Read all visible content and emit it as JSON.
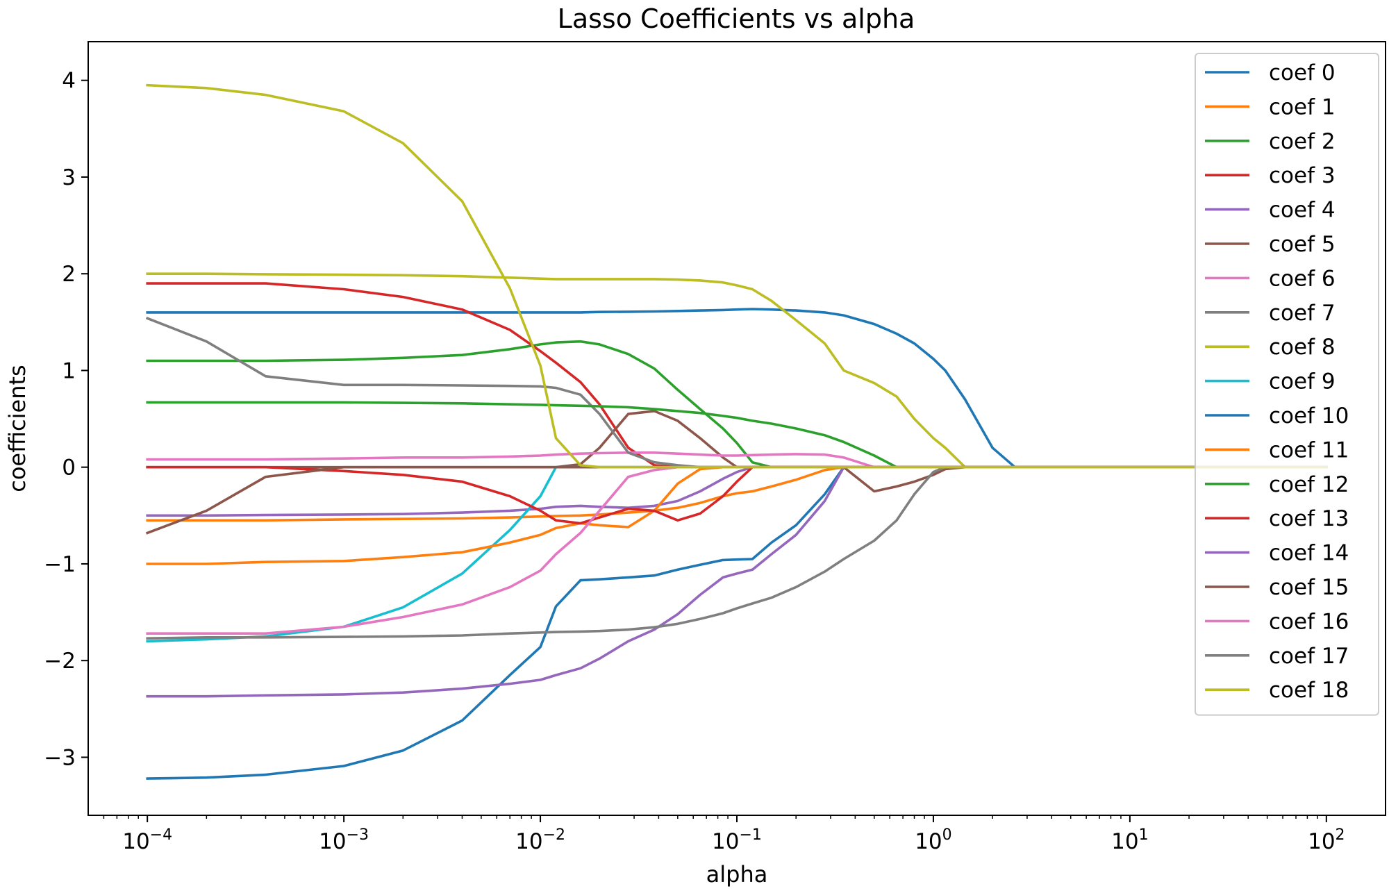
{
  "chart_data": {
    "type": "line",
    "title": "Lasso Coefficients vs alpha",
    "xlabel": "alpha",
    "ylabel": "coefficients",
    "xscale": "log",
    "xlim": [
      5e-05,
      200
    ],
    "ylim": [
      -3.6,
      4.4
    ],
    "xticks": [
      {
        "value": 0.0001,
        "base": "10",
        "exp": "−4"
      },
      {
        "value": 0.001,
        "base": "10",
        "exp": "−3"
      },
      {
        "value": 0.01,
        "base": "10",
        "exp": "−2"
      },
      {
        "value": 0.1,
        "base": "10",
        "exp": "−1"
      },
      {
        "value": 1,
        "base": "10",
        "exp": "0"
      },
      {
        "value": 10,
        "base": "10",
        "exp": "1"
      },
      {
        "value": 100,
        "base": "10",
        "exp": "2"
      }
    ],
    "yticks": [
      {
        "value": -3,
        "label": "−3"
      },
      {
        "value": -2,
        "label": "−2"
      },
      {
        "value": -1,
        "label": "−1"
      },
      {
        "value": 0,
        "label": "0"
      },
      {
        "value": 1,
        "label": "1"
      },
      {
        "value": 2,
        "label": "2"
      },
      {
        "value": 3,
        "label": "3"
      },
      {
        "value": 4,
        "label": "4"
      }
    ],
    "grid": false,
    "legend_position": "top-right",
    "x": [
      0.0001,
      0.0002,
      0.0004,
      0.001,
      0.002,
      0.004,
      0.007,
      0.01,
      0.012,
      0.016,
      0.02,
      0.028,
      0.038,
      0.05,
      0.065,
      0.085,
      0.1,
      0.12,
      0.15,
      0.2,
      0.28,
      0.35,
      0.5,
      0.65,
      0.8,
      1.0,
      1.15,
      1.45,
      2.0,
      2.6,
      10,
      100
    ],
    "series": [
      {
        "name": "coef 0",
        "color": "#1f77b4",
        "values": [
          1.6,
          1.6,
          1.6,
          1.6,
          1.6,
          1.6,
          1.6,
          1.6,
          1.6,
          1.6,
          1.605,
          1.607,
          1.61,
          1.615,
          1.62,
          1.625,
          1.63,
          1.635,
          1.63,
          1.62,
          1.6,
          1.57,
          1.48,
          1.38,
          1.28,
          1.12,
          1.0,
          0.7,
          0.2,
          0,
          0,
          0
        ]
      },
      {
        "name": "coef 1",
        "color": "#ff7f0e",
        "values": [
          -0.55,
          -0.55,
          -0.55,
          -0.54,
          -0.535,
          -0.53,
          -0.52,
          -0.51,
          -0.505,
          -0.5,
          -0.49,
          -0.47,
          -0.45,
          -0.42,
          -0.37,
          -0.3,
          -0.27,
          -0.25,
          -0.2,
          -0.13,
          -0.03,
          0,
          0,
          0,
          0,
          0,
          0,
          0,
          0,
          0,
          0,
          0
        ]
      },
      {
        "name": "coef 2",
        "color": "#2ca02c",
        "values": [
          1.1,
          1.1,
          1.1,
          1.11,
          1.13,
          1.16,
          1.22,
          1.27,
          1.29,
          1.3,
          1.27,
          1.17,
          1.02,
          0.8,
          0.6,
          0.4,
          0.25,
          0.05,
          0,
          0,
          0,
          0,
          0,
          0,
          0,
          0,
          0,
          0,
          0,
          0,
          0,
          0
        ]
      },
      {
        "name": "coef 3",
        "color": "#d62728",
        "values": [
          1.9,
          1.9,
          1.9,
          1.84,
          1.76,
          1.63,
          1.42,
          1.2,
          1.08,
          0.88,
          0.65,
          0.2,
          0.02,
          0,
          0,
          0,
          0,
          0,
          0,
          0,
          0,
          0,
          0,
          0,
          0,
          0,
          0,
          0,
          0,
          0,
          0,
          0
        ]
      },
      {
        "name": "coef 4",
        "color": "#9467bd",
        "values": [
          -0.5,
          -0.5,
          -0.495,
          -0.49,
          -0.485,
          -0.47,
          -0.45,
          -0.43,
          -0.41,
          -0.4,
          -0.41,
          -0.42,
          -0.4,
          -0.35,
          -0.25,
          -0.12,
          -0.05,
          0,
          0,
          0,
          0,
          0,
          0,
          0,
          0,
          0,
          0,
          0,
          0,
          0,
          0,
          0
        ]
      },
      {
        "name": "coef 5",
        "color": "#8c564b",
        "values": [
          0,
          0,
          0,
          0,
          0,
          0,
          0,
          0,
          0,
          0.03,
          0.2,
          0.55,
          0.58,
          0.48,
          0.3,
          0.1,
          0,
          0,
          0,
          0,
          0,
          0,
          0,
          0,
          0,
          0,
          0,
          0,
          0,
          0,
          0,
          0
        ]
      },
      {
        "name": "coef 6",
        "color": "#e377c2",
        "values": [
          0.08,
          0.08,
          0.08,
          0.09,
          0.1,
          0.1,
          0.11,
          0.12,
          0.13,
          0.14,
          0.145,
          0.15,
          0.15,
          0.14,
          0.13,
          0.12,
          0.12,
          0.125,
          0.13,
          0.135,
          0.13,
          0.1,
          0,
          0,
          0,
          0,
          0,
          0,
          0,
          0,
          0,
          0
        ]
      },
      {
        "name": "coef 7",
        "color": "#7f7f7f",
        "values": [
          1.54,
          1.3,
          0.94,
          0.85,
          0.85,
          0.845,
          0.84,
          0.835,
          0.82,
          0.75,
          0.55,
          0.15,
          0.05,
          0.02,
          0,
          0,
          0,
          0,
          0,
          0,
          0,
          0,
          0,
          0,
          0,
          0,
          0,
          0,
          0,
          0,
          0,
          0
        ]
      },
      {
        "name": "coef 8",
        "color": "#bcbd22",
        "values": [
          2.0,
          2.0,
          1.995,
          1.99,
          1.985,
          1.975,
          1.96,
          1.95,
          1.945,
          1.945,
          1.945,
          1.945,
          1.945,
          1.94,
          1.93,
          1.91,
          1.88,
          1.84,
          1.72,
          1.52,
          1.28,
          1.0,
          0.87,
          0.73,
          0.5,
          0.3,
          0.2,
          0,
          0,
          0,
          0,
          0
        ]
      },
      {
        "name": "coef 9",
        "color": "#17becf",
        "values": [
          -1.8,
          -1.78,
          -1.75,
          -1.65,
          -1.45,
          -1.1,
          -0.65,
          -0.3,
          0,
          0,
          0,
          0,
          0,
          0,
          0,
          0,
          0,
          0,
          0,
          0,
          0,
          0,
          0,
          0,
          0,
          0,
          0,
          0,
          0,
          0,
          0,
          0
        ]
      },
      {
        "name": "coef 10",
        "color": "#1f77b4",
        "values": [
          -3.22,
          -3.21,
          -3.18,
          -3.09,
          -2.93,
          -2.62,
          -2.15,
          -1.86,
          -1.44,
          -1.17,
          -1.16,
          -1.14,
          -1.12,
          -1.06,
          -1.01,
          -0.96,
          -0.955,
          -0.95,
          -0.78,
          -0.6,
          -0.28,
          0,
          0,
          0,
          0,
          0,
          0,
          0,
          0,
          0,
          0,
          0
        ]
      },
      {
        "name": "coef 11",
        "color": "#ff7f0e",
        "values": [
          -1.0,
          -1.0,
          -0.98,
          -0.97,
          -0.93,
          -0.88,
          -0.78,
          -0.7,
          -0.63,
          -0.58,
          -0.6,
          -0.62,
          -0.45,
          -0.17,
          -0.02,
          0,
          0,
          0,
          0,
          0,
          0,
          0,
          0,
          0,
          0,
          0,
          0,
          0,
          0,
          0,
          0,
          0
        ]
      },
      {
        "name": "coef 12",
        "color": "#2ca02c",
        "values": [
          0.67,
          0.67,
          0.67,
          0.67,
          0.665,
          0.66,
          0.65,
          0.645,
          0.64,
          0.635,
          0.63,
          0.62,
          0.6,
          0.58,
          0.56,
          0.53,
          0.51,
          0.48,
          0.45,
          0.4,
          0.33,
          0.26,
          0.12,
          0,
          0,
          0,
          0,
          0,
          0,
          0,
          0,
          0
        ]
      },
      {
        "name": "coef 13",
        "color": "#d62728",
        "values": [
          0,
          0,
          0,
          -0.04,
          -0.08,
          -0.15,
          -0.3,
          -0.45,
          -0.55,
          -0.58,
          -0.52,
          -0.43,
          -0.45,
          -0.55,
          -0.48,
          -0.3,
          -0.15,
          0,
          0,
          0,
          0,
          0,
          0,
          0,
          0,
          0,
          0,
          0,
          0,
          0,
          0,
          0
        ]
      },
      {
        "name": "coef 14",
        "color": "#9467bd",
        "values": [
          -2.37,
          -2.37,
          -2.36,
          -2.35,
          -2.33,
          -2.29,
          -2.24,
          -2.2,
          -2.15,
          -2.08,
          -1.98,
          -1.8,
          -1.68,
          -1.52,
          -1.32,
          -1.14,
          -1.1,
          -1.06,
          -0.9,
          -0.7,
          -0.35,
          0,
          0,
          0,
          0,
          0,
          0,
          0,
          0,
          0,
          0,
          0
        ]
      },
      {
        "name": "coef 15",
        "color": "#8c564b",
        "values": [
          -0.68,
          -0.45,
          -0.1,
          0,
          0,
          0,
          0,
          0,
          0,
          0,
          0,
          0,
          0,
          0,
          0,
          0,
          0,
          0,
          0,
          0,
          0,
          0,
          -0.25,
          -0.2,
          -0.15,
          -0.08,
          -0.02,
          0,
          0,
          0,
          0,
          0
        ]
      },
      {
        "name": "coef 16",
        "color": "#e377c2",
        "values": [
          -1.72,
          -1.72,
          -1.72,
          -1.65,
          -1.55,
          -1.42,
          -1.24,
          -1.07,
          -0.9,
          -0.68,
          -0.45,
          -0.1,
          -0.03,
          0,
          0,
          0,
          0,
          0,
          0,
          0,
          0,
          0,
          0,
          0,
          0,
          0,
          0,
          0,
          0,
          0,
          0,
          0
        ]
      },
      {
        "name": "coef 17",
        "color": "#7f7f7f",
        "values": [
          -1.77,
          -1.76,
          -1.76,
          -1.755,
          -1.75,
          -1.74,
          -1.72,
          -1.71,
          -1.705,
          -1.7,
          -1.695,
          -1.68,
          -1.655,
          -1.62,
          -1.57,
          -1.51,
          -1.46,
          -1.41,
          -1.35,
          -1.24,
          -1.08,
          -0.95,
          -0.76,
          -0.55,
          -0.28,
          -0.05,
          0,
          0,
          0,
          0,
          0,
          0
        ]
      },
      {
        "name": "coef 18",
        "color": "#bcbd22",
        "values": [
          3.95,
          3.92,
          3.85,
          3.68,
          3.35,
          2.75,
          1.85,
          1.05,
          0.3,
          0.02,
          0,
          0,
          0,
          0,
          0,
          0,
          0,
          0,
          0,
          0,
          0,
          0,
          0,
          0,
          0,
          0,
          0,
          0,
          0,
          0,
          0,
          0
        ]
      }
    ]
  }
}
